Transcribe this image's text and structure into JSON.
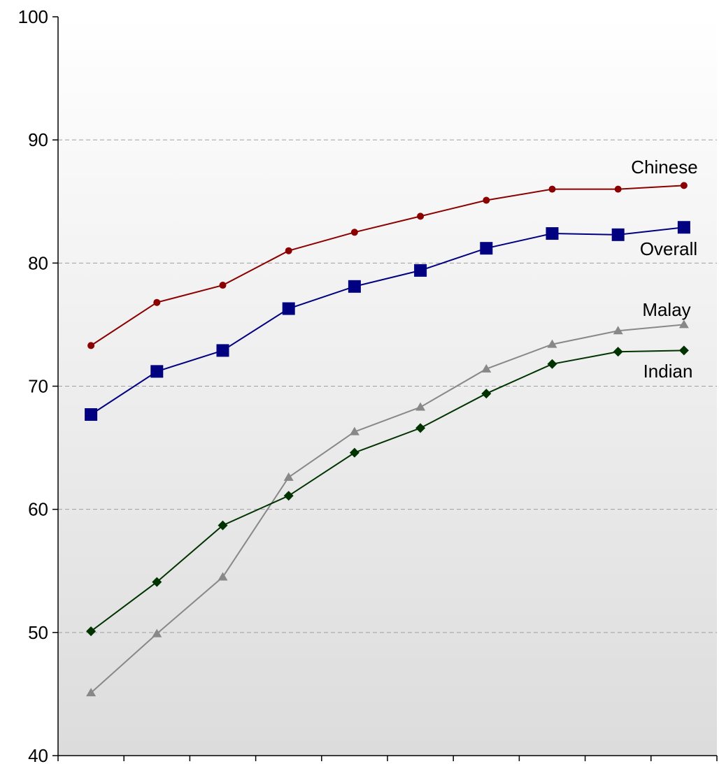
{
  "chart_data": {
    "type": "line",
    "title": "",
    "xlabel": "",
    "ylabel": "",
    "ylim": [
      40,
      100
    ],
    "yticks": [
      40,
      50,
      60,
      70,
      80,
      90,
      100
    ],
    "x": [
      1,
      2,
      3,
      4,
      5,
      6,
      7,
      8,
      9,
      10
    ],
    "grid": "horizontal-dashed",
    "legend": "inline-labels-right",
    "series": [
      {
        "name": "Chinese",
        "color": "#8B0000",
        "marker": "circle",
        "values": [
          73.3,
          76.8,
          78.2,
          81.0,
          82.5,
          83.8,
          85.1,
          86.0,
          86.0,
          86.3
        ]
      },
      {
        "name": "Overall",
        "color": "#000080",
        "marker": "square",
        "values": [
          67.7,
          71.2,
          72.9,
          76.3,
          78.1,
          79.4,
          81.2,
          82.4,
          82.3,
          82.9
        ]
      },
      {
        "name": "Malay",
        "color": "#888888",
        "marker": "triangle",
        "values": [
          45.1,
          49.9,
          54.5,
          62.6,
          66.3,
          68.3,
          71.4,
          73.4,
          74.5,
          75.0
        ]
      },
      {
        "name": "Indian",
        "color": "#003300",
        "marker": "diamond",
        "values": [
          50.1,
          54.1,
          58.7,
          61.1,
          64.6,
          66.6,
          69.4,
          71.8,
          72.8,
          72.9
        ]
      }
    ]
  }
}
